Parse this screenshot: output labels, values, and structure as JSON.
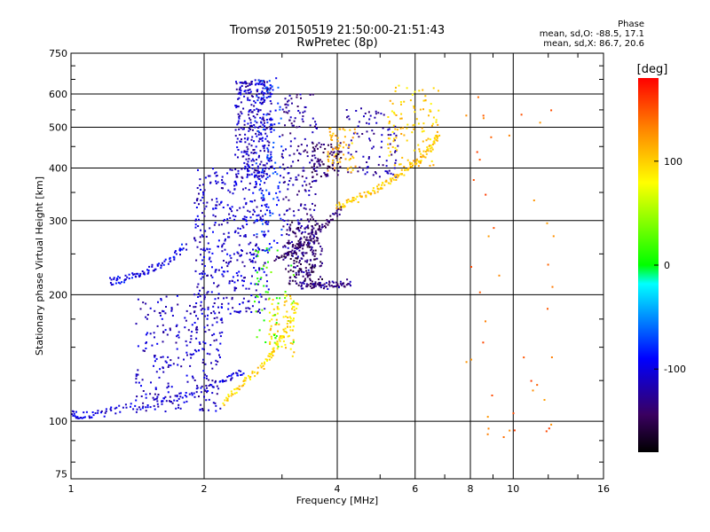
{
  "chart_data": {
    "type": "scatter",
    "title": "Tromsø 20150519 21:50:00-21:51:43",
    "subtitle": "RwPretec (8p)",
    "xlabel": "Frequency [MHz]",
    "ylabel": "Stationary phase Virtual Height [km]",
    "x_scale": "log",
    "y_scale": "log",
    "xlim": [
      1,
      16
    ],
    "ylim": [
      73,
      750
    ],
    "x_ticks": [
      1,
      2,
      4,
      6,
      8,
      10,
      16
    ],
    "y_ticks": [
      75,
      100,
      200,
      300,
      400,
      500,
      600,
      750
    ],
    "grid": true,
    "colorbar": {
      "label": "[deg]",
      "ticks": [
        100,
        0,
        -100
      ],
      "range": [
        -180,
        180
      ]
    },
    "phase_stats": {
      "heading": "Phase",
      "o_line": "mean, sd,O: -88.5, 17.1",
      "x_line": "mean, sd,X: 86.7, 20.6"
    },
    "traces": [
      {
        "name": "",
        "mode": "trace",
        "phase": -105,
        "x": [
          1.0,
          1.05,
          1.15,
          1.3,
          1.5,
          1.7,
          1.9,
          2.1,
          2.3,
          2.45
        ],
        "y": [
          105,
          103,
          104,
          107,
          110,
          113,
          117,
          122,
          127,
          132
        ]
      },
      {
        "name": "",
        "mode": "trace",
        "phase": -95,
        "x": [
          1.22,
          1.3,
          1.4,
          1.5,
          1.6,
          1.72,
          1.82
        ],
        "y": [
          215,
          217,
          222,
          228,
          236,
          248,
          262
        ]
      },
      {
        "name": "",
        "mode": "trace",
        "phase": -140,
        "x": [
          2.9,
          3.1,
          3.3,
          3.5,
          3.7,
          3.9,
          4.1
        ],
        "y": [
          240,
          250,
          262,
          275,
          290,
          305,
          322
        ]
      },
      {
        "name": "",
        "mode": "trace",
        "phase": -130,
        "x": [
          3.3,
          3.5,
          3.7,
          3.9,
          4.1,
          4.3
        ],
        "y": [
          210,
          210,
          210,
          211,
          212,
          214
        ]
      },
      {
        "name": "",
        "mode": "trace",
        "phase": 105,
        "x": [
          4.0,
          4.2,
          4.5,
          4.8,
          5.1,
          5.4,
          5.7,
          6.0,
          6.3,
          6.6,
          6.8
        ],
        "y": [
          325,
          330,
          340,
          352,
          365,
          380,
          395,
          410,
          430,
          455,
          480
        ]
      },
      {
        "name": "",
        "mode": "trace",
        "phase": 95,
        "x": [
          2.2,
          2.35,
          2.5,
          2.7,
          2.85,
          3.0,
          3.15,
          3.25
        ],
        "y": [
          110,
          118,
          126,
          135,
          145,
          158,
          175,
          195
        ]
      }
    ],
    "clouds": [
      {
        "phase": -110,
        "x": [
          1.4,
          2.2
        ],
        "y": [
          105,
          200
        ],
        "count": 260
      },
      {
        "phase": -108,
        "x": [
          1.9,
          2.8
        ],
        "y": [
          180,
          400
        ],
        "count": 420
      },
      {
        "phase": -112,
        "x": [
          2.35,
          2.85
        ],
        "y": [
          380,
          650
        ],
        "count": 320
      },
      {
        "phase": -125,
        "x": [
          3.0,
          3.6
        ],
        "y": [
          220,
          600
        ],
        "count": 240
      },
      {
        "phase": -145,
        "x": [
          3.1,
          3.7
        ],
        "y": [
          210,
          300
        ],
        "count": 160
      },
      {
        "phase": -140,
        "x": [
          3.5,
          4.1
        ],
        "y": [
          380,
          460
        ],
        "count": 80
      },
      {
        "phase": -120,
        "x": [
          4.2,
          5.5
        ],
        "y": [
          380,
          560
        ],
        "count": 90
      },
      {
        "phase": 110,
        "x": [
          3.8,
          4.4
        ],
        "y": [
          390,
          500
        ],
        "count": 60
      },
      {
        "phase": 100,
        "x": [
          5.2,
          6.8
        ],
        "y": [
          400,
          640
        ],
        "count": 110
      },
      {
        "phase": 95,
        "x": [
          2.8,
          3.2
        ],
        "y": [
          140,
          200
        ],
        "count": 70
      },
      {
        "phase": 20,
        "x": [
          2.6,
          3.2
        ],
        "y": [
          150,
          260
        ],
        "count": 50
      },
      {
        "phase": -80,
        "x": [
          2.6,
          3.0
        ],
        "y": [
          250,
          660
        ],
        "count": 120
      },
      {
        "phase": 140,
        "x": [
          7.8,
          12.5
        ],
        "y": [
          90,
          600
        ],
        "count": 45
      }
    ]
  }
}
